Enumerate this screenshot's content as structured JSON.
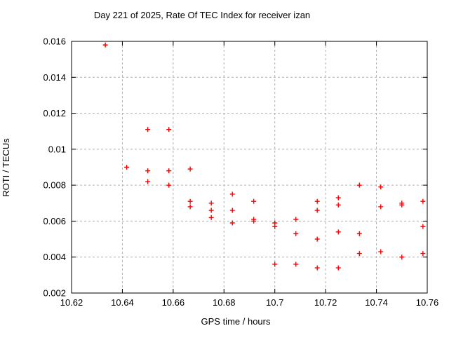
{
  "chart_data": {
    "type": "scatter",
    "title": "Day 221 of 2025, Rate Of TEC Index for receiver izan",
    "xlabel": "GPS time / hours",
    "ylabel": "ROTI / TECUs",
    "xlim": [
      10.62,
      10.76
    ],
    "ylim": [
      0.002,
      0.016
    ],
    "xtick_values": [
      10.62,
      10.64,
      10.66,
      10.68,
      10.7,
      10.72,
      10.74,
      10.76
    ],
    "xtick_labels": [
      "10.62",
      "10.64",
      "10.66",
      "10.68",
      "10.7",
      "10.72",
      "10.74",
      "10.76"
    ],
    "ytick_values": [
      0.002,
      0.004,
      0.006,
      0.008,
      0.01,
      0.012,
      0.014,
      0.016
    ],
    "ytick_labels": [
      "0.002",
      "0.004",
      "0.006",
      "0.008",
      "0.01",
      "0.012",
      "0.014",
      "0.016"
    ],
    "grid": true,
    "legend": "none",
    "marker": {
      "shape": "plus",
      "color": "#ff0000",
      "size": 7
    },
    "colors": {
      "background": "#ffffff",
      "border": "#000000",
      "grid": "#b0b0b0",
      "points": "#ff0000"
    },
    "series": [
      {
        "name": "ROTI",
        "points": [
          [
            10.6333,
            0.0158
          ],
          [
            10.6417,
            0.009
          ],
          [
            10.65,
            0.0111
          ],
          [
            10.65,
            0.0088
          ],
          [
            10.65,
            0.0082
          ],
          [
            10.6583,
            0.0111
          ],
          [
            10.6583,
            0.0088
          ],
          [
            10.6583,
            0.008
          ],
          [
            10.6667,
            0.0089
          ],
          [
            10.6667,
            0.0071
          ],
          [
            10.6667,
            0.0068
          ],
          [
            10.675,
            0.007
          ],
          [
            10.675,
            0.0066
          ],
          [
            10.675,
            0.0062
          ],
          [
            10.6833,
            0.0075
          ],
          [
            10.6833,
            0.0066
          ],
          [
            10.6833,
            0.0059
          ],
          [
            10.6917,
            0.0071
          ],
          [
            10.6917,
            0.0061
          ],
          [
            10.6917,
            0.006
          ],
          [
            10.7,
            0.0059
          ],
          [
            10.7,
            0.0057
          ],
          [
            10.7,
            0.0036
          ],
          [
            10.7083,
            0.0061
          ],
          [
            10.7083,
            0.0053
          ],
          [
            10.7083,
            0.0036
          ],
          [
            10.7167,
            0.0071
          ],
          [
            10.7167,
            0.0066
          ],
          [
            10.7167,
            0.005
          ],
          [
            10.7167,
            0.0034
          ],
          [
            10.725,
            0.0073
          ],
          [
            10.725,
            0.0069
          ],
          [
            10.725,
            0.0054
          ],
          [
            10.725,
            0.0034
          ],
          [
            10.7333,
            0.008
          ],
          [
            10.7333,
            0.0053
          ],
          [
            10.7333,
            0.0042
          ],
          [
            10.7417,
            0.0079
          ],
          [
            10.7417,
            0.0068
          ],
          [
            10.7417,
            0.0043
          ],
          [
            10.75,
            0.007
          ],
          [
            10.75,
            0.0069
          ],
          [
            10.75,
            0.004
          ],
          [
            10.7583,
            0.0071
          ],
          [
            10.7583,
            0.0057
          ],
          [
            10.7583,
            0.0042
          ]
        ]
      }
    ]
  }
}
